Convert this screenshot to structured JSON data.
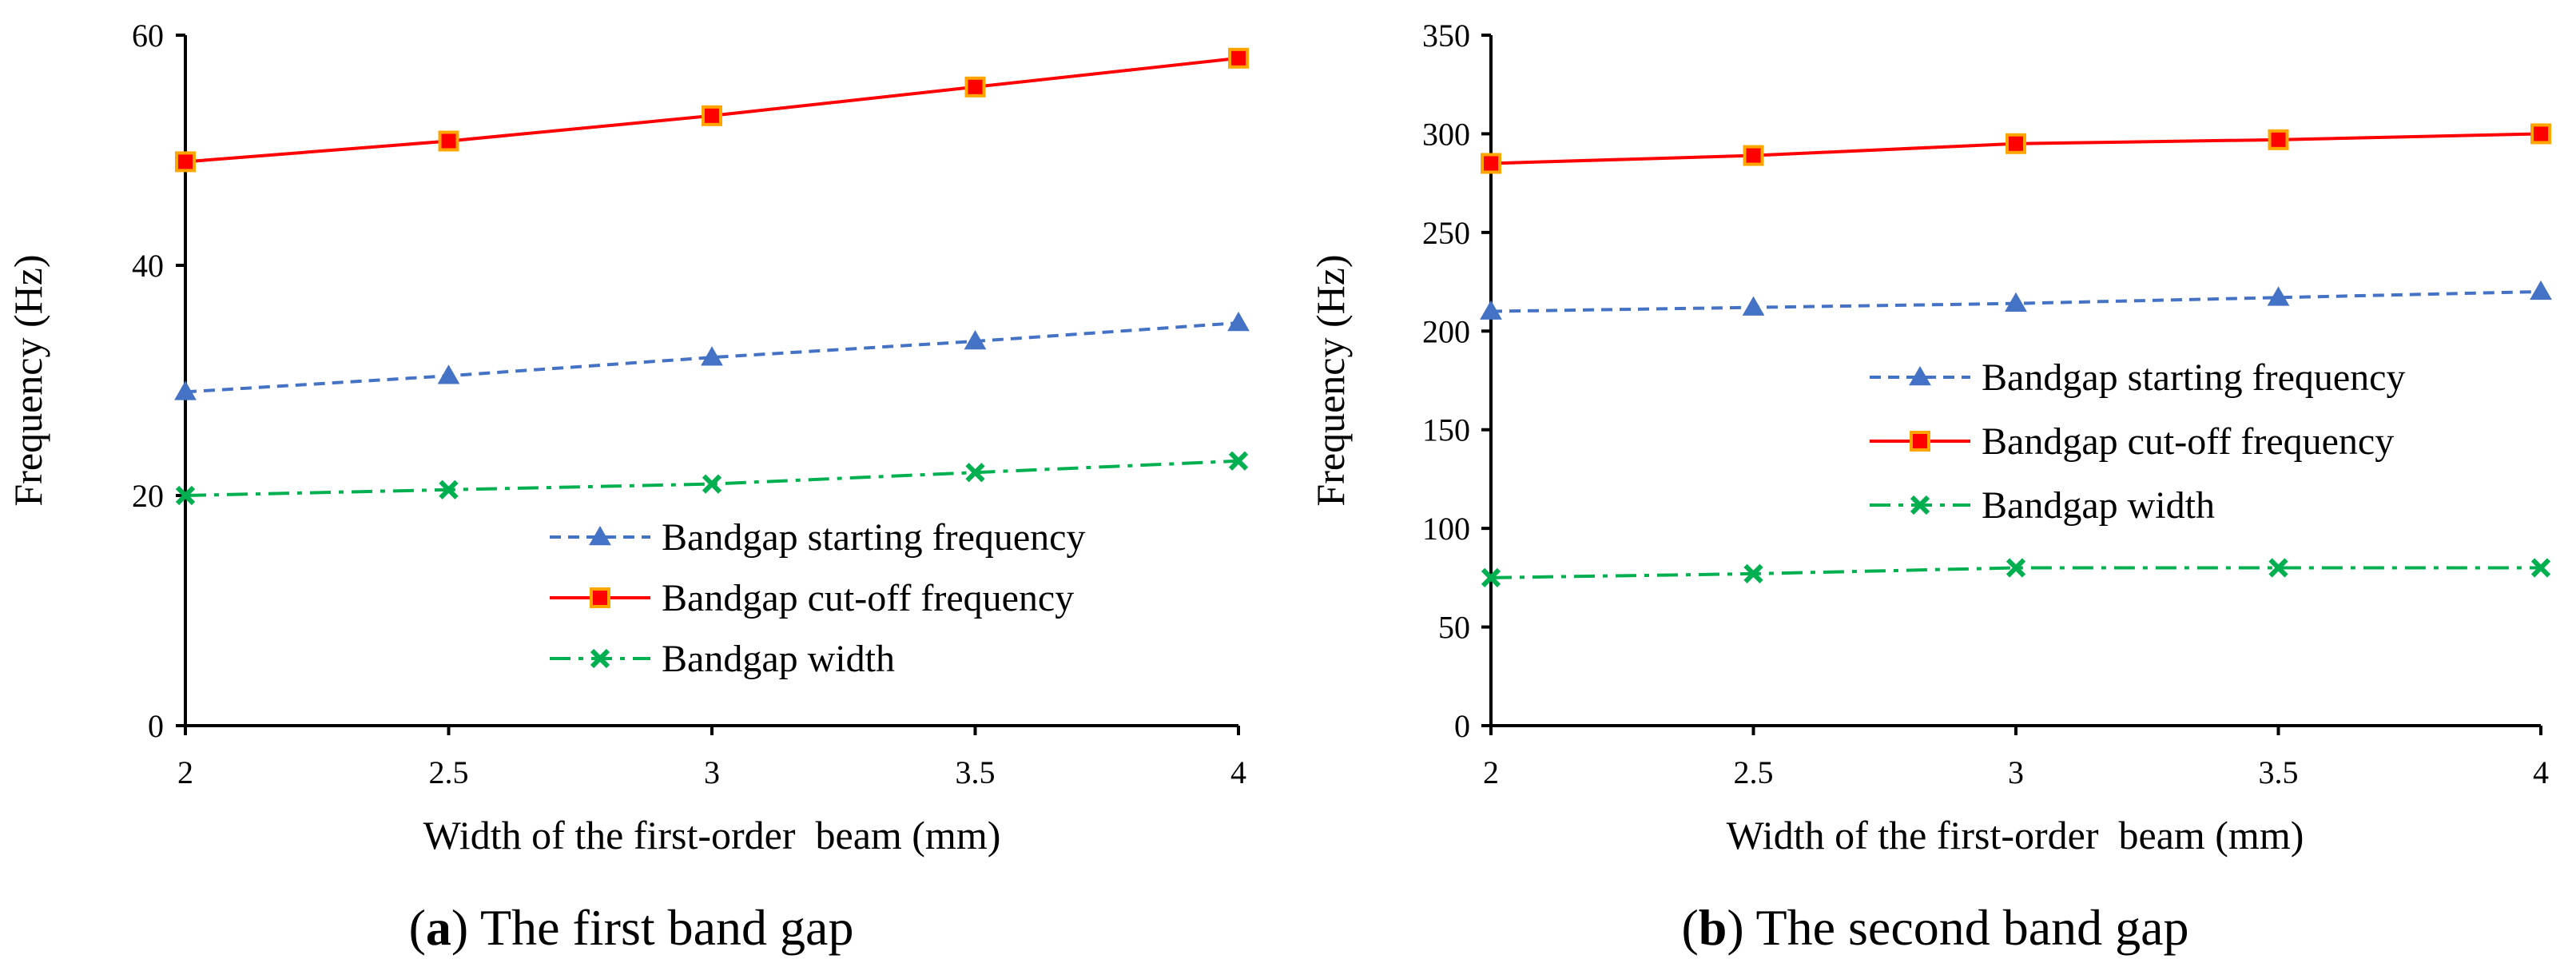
{
  "chart_data": [
    {
      "type": "line",
      "x": [
        2,
        2.5,
        3,
        3.5,
        4
      ],
      "xlabel": "Width of the first-order  beam (mm)",
      "ylabel": "Frequency (Hz)",
      "xlim": [
        2,
        4
      ],
      "ylim": [
        0,
        60
      ],
      "yticks": [
        0,
        20,
        40,
        60
      ],
      "xticks": [
        "2",
        "2.5",
        "3",
        "3.5",
        "4"
      ],
      "legend_position": "lower-right",
      "caption_label": "a",
      "caption_text": " The first band gap",
      "series": [
        {
          "name": "Bandgap starting frequency",
          "values": [
            29,
            30.4,
            32,
            33.4,
            35
          ],
          "color": "#4472C4",
          "style": "dashed",
          "marker": "triangle"
        },
        {
          "name": "Bandgap cut-off frequency",
          "values": [
            49,
            50.8,
            53,
            55.5,
            58
          ],
          "color": "#FF0000",
          "style": "solid",
          "marker": "square"
        },
        {
          "name": "Bandgap width",
          "values": [
            20,
            20.5,
            21,
            22,
            23
          ],
          "color": "#00B050",
          "style": "dashdot",
          "marker": "x"
        }
      ]
    },
    {
      "type": "line",
      "x": [
        2,
        2.5,
        3,
        3.5,
        4
      ],
      "xlabel": "Width of the first-order  beam (mm)",
      "ylabel": "Frequency (Hz)",
      "xlim": [
        2,
        4
      ],
      "ylim": [
        0,
        350
      ],
      "yticks": [
        0,
        50,
        100,
        150,
        200,
        250,
        300,
        350
      ],
      "xticks": [
        "2",
        "2.5",
        "3",
        "3.5",
        "4"
      ],
      "legend_position": "middle-right",
      "caption_label": "b",
      "caption_text": " The second band gap",
      "series": [
        {
          "name": "Bandgap starting frequency",
          "values": [
            210,
            212,
            214,
            217,
            220
          ],
          "color": "#4472C4",
          "style": "dashed",
          "marker": "triangle"
        },
        {
          "name": "Bandgap cut-off frequency",
          "values": [
            285,
            289,
            295,
            297,
            300
          ],
          "color": "#FF0000",
          "style": "solid",
          "marker": "square"
        },
        {
          "name": "Bandgap width",
          "values": [
            75,
            77,
            80,
            80,
            80
          ],
          "color": "#00B050",
          "style": "dashdot",
          "marker": "x"
        }
      ]
    }
  ]
}
